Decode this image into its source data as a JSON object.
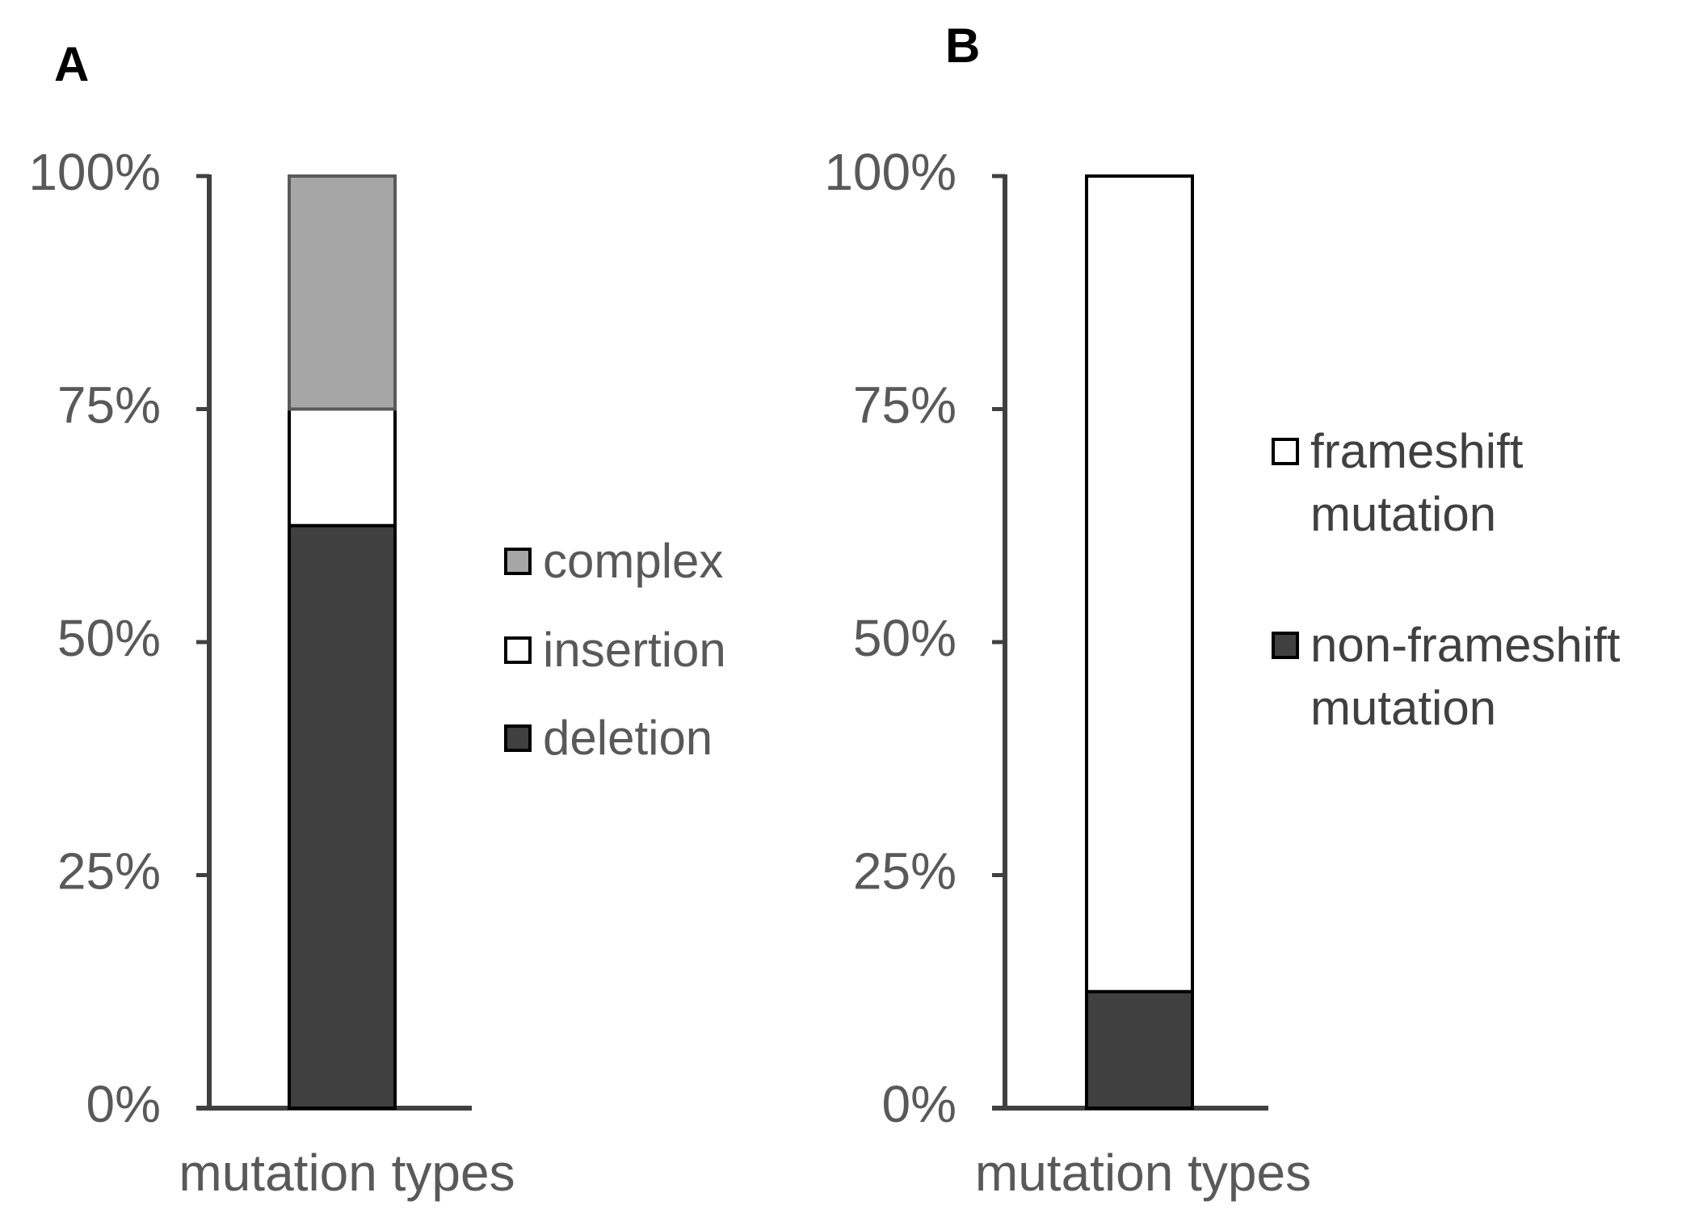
{
  "chart_data": [
    {
      "type": "bar",
      "stacked": true,
      "panel_label": "A",
      "categories": [
        "mutation types"
      ],
      "series": [
        {
          "name": "deletion",
          "color": "#404040",
          "values": [
            62.5
          ]
        },
        {
          "name": "insertion",
          "color": "#ffffff",
          "values": [
            12.5
          ]
        },
        {
          "name": "complex",
          "color": "#a6a6a6",
          "values": [
            25
          ]
        }
      ],
      "ylim": [
        0,
        100
      ],
      "yticks": [
        {
          "value": 0,
          "label": "0%"
        },
        {
          "value": 25,
          "label": "25%"
        },
        {
          "value": 50,
          "label": "50%"
        },
        {
          "value": 75,
          "label": "75%"
        },
        {
          "value": 100,
          "label": "100%"
        }
      ],
      "grid": false,
      "legend": "right"
    },
    {
      "type": "bar",
      "stacked": true,
      "panel_label": "B",
      "categories": [
        "mutation types"
      ],
      "series": [
        {
          "name": "non-frameshift mutation",
          "color": "#404040",
          "values": [
            12.5
          ]
        },
        {
          "name": "frameshift mutation",
          "color": "#ffffff",
          "values": [
            87.5
          ]
        }
      ],
      "ylim": [
        0,
        100
      ],
      "yticks": [
        {
          "value": 0,
          "label": "0%"
        },
        {
          "value": 25,
          "label": "25%"
        },
        {
          "value": 50,
          "label": "50%"
        },
        {
          "value": 75,
          "label": "75%"
        },
        {
          "value": 100,
          "label": "100%"
        }
      ],
      "grid": false,
      "legend": "right"
    }
  ]
}
